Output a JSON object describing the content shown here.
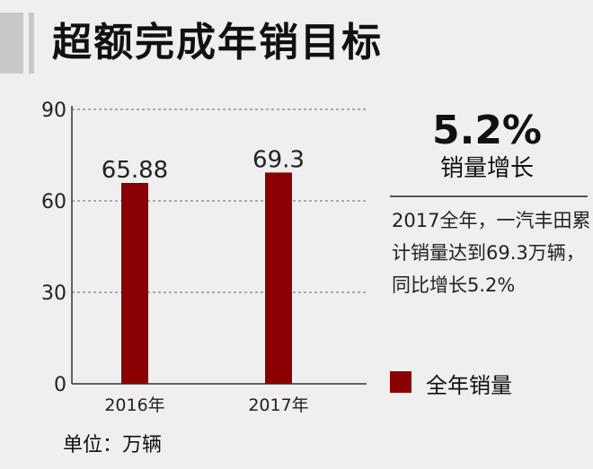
{
  "title": "超额完成年销目标",
  "chart_data": {
    "type": "bar",
    "categories": [
      "2016年",
      "2017年"
    ],
    "values": [
      65.88,
      69.3
    ],
    "value_labels": [
      "65.88",
      "69.3"
    ],
    "yticks": [
      "0",
      "30",
      "60",
      "90"
    ],
    "ylim": [
      0,
      90
    ],
    "grid": true,
    "bar_color": "#8b0000",
    "legend": "全年销量",
    "unit": "单位：万辆"
  },
  "highlight": {
    "value": "5.2%",
    "label": "销量增长"
  },
  "description": "2017全年，一汽丰田累计销量达到69.3万辆，同比增长5.2%"
}
